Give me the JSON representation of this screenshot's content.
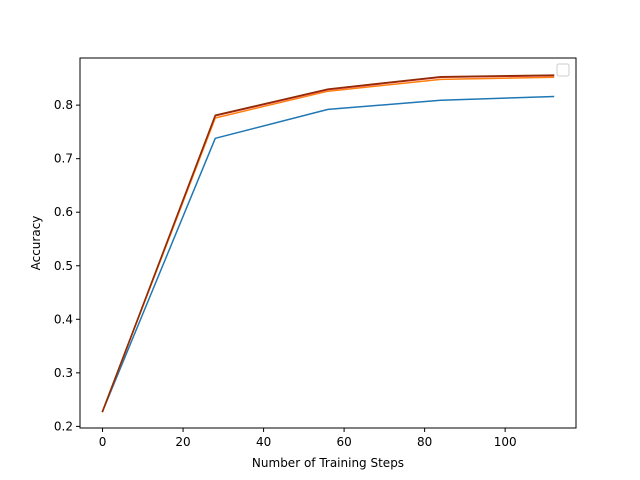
{
  "chart_data": {
    "type": "line",
    "title": "",
    "xlabel": "Number of Training Steps",
    "ylabel": "Accuracy",
    "xlim": [
      -5.6,
      117.6
    ],
    "ylim": [
      0.197,
      0.888
    ],
    "xticks": [
      0,
      20,
      40,
      60,
      80,
      100
    ],
    "yticks": [
      0.2,
      0.3,
      0.4,
      0.5,
      0.6,
      0.7,
      0.8
    ],
    "grid": false,
    "legend": {
      "placement": "top-right",
      "entries": []
    },
    "series": [
      {
        "color": "#1f77b4",
        "x": [
          0,
          28,
          56,
          84,
          112
        ],
        "y": [
          0.228,
          0.738,
          0.792,
          0.809,
          0.816
        ]
      },
      {
        "color": "#ff7f0e",
        "x": [
          0,
          28,
          56,
          84,
          112
        ],
        "y": [
          0.228,
          0.776,
          0.826,
          0.848,
          0.852
        ]
      },
      {
        "color": "#d62728",
        "x": [
          0,
          28,
          56,
          84,
          112
        ],
        "y": [
          0.228,
          0.78,
          0.829,
          0.852,
          0.855
        ]
      },
      {
        "color": "#8c2d04",
        "x": [
          0,
          28,
          56,
          84,
          112
        ],
        "y": [
          0.228,
          0.781,
          0.83,
          0.853,
          0.856
        ]
      }
    ]
  }
}
